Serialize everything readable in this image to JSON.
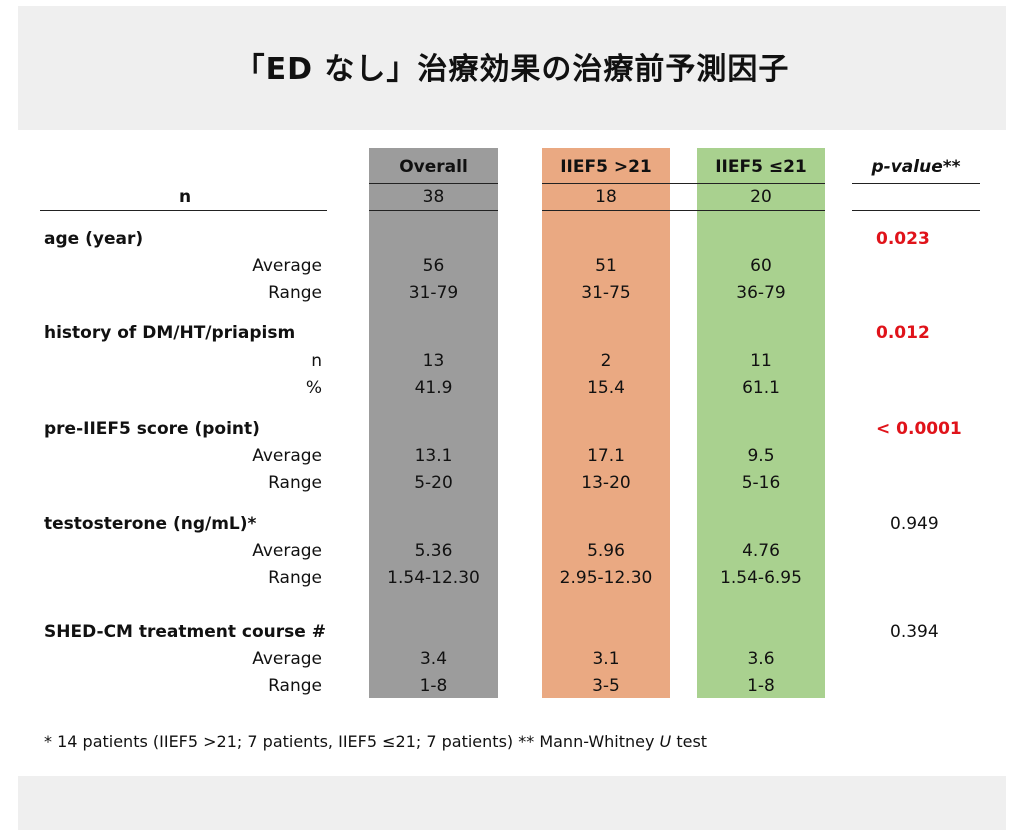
{
  "title": "「ED なし」治療効果の治療前予測因子",
  "columns": {
    "overall": "Overall",
    "high": "IIEF5 >21",
    "low": "IIEF5 ≤21",
    "pvalue": "p-value**"
  },
  "n_row": {
    "label": "n",
    "overall": "38",
    "high": "18",
    "low": "20"
  },
  "sections": [
    {
      "header": "age (year)",
      "p": "0.023",
      "rows": [
        {
          "label": "Average",
          "overall": "56",
          "high": "51",
          "low": "60"
        },
        {
          "label": "Range",
          "overall": "31-79",
          "high": "31-75",
          "low": "36-79"
        }
      ]
    },
    {
      "header": "history of DM/HT/priapism",
      "p": "0.012",
      "rows": [
        {
          "label": "n",
          "overall": "13",
          "high": "2",
          "low": "11"
        },
        {
          "label": "%",
          "overall": "41.9",
          "high": "15.4",
          "low": "61.1"
        }
      ]
    },
    {
      "header": "pre-IIEF5 score (point)",
      "p": "< 0.0001",
      "rows": [
        {
          "label": "Average",
          "overall": "13.1",
          "high": "17.1",
          "low": "9.5"
        },
        {
          "label": "Range",
          "overall": "5-20",
          "high": "13-20",
          "low": "5-16"
        }
      ]
    },
    {
      "header": "testosterone (ng/mL)*",
      "p": "0.949",
      "rows": [
        {
          "label": "Average",
          "overall": "5.36",
          "high": "5.96",
          "low": "4.76"
        },
        {
          "label": "Range",
          "overall": "1.54-12.30",
          "high": "2.95-12.30",
          "low": "1.54-6.95"
        }
      ]
    },
    {
      "header": "SHED-CM treatment course #",
      "p": "0.394",
      "rows": [
        {
          "label": "Average",
          "overall": "3.4",
          "high": "3.1",
          "low": "3.6"
        },
        {
          "label": "Range",
          "overall": "1-8",
          "high": "3-5",
          "low": "1-8"
        }
      ]
    }
  ],
  "footnote": {
    "part1": "* 14 patients (IIEF5 >21; 7 patients, IIEF5 ≤21; 7 patients)  ** Mann-Whitney ",
    "u": "U",
    "part2": " test"
  },
  "colors": {
    "overall": "#9c9c9c",
    "high": "#eaa982",
    "low": "#a9d18f",
    "significant": "#e0131a"
  }
}
